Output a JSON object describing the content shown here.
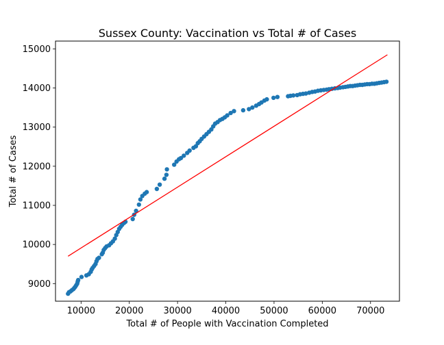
{
  "chart_data": {
    "type": "scatter",
    "title": "Sussex County: Vaccination vs Total # of Cases",
    "xlabel": "Total # of People with Vaccination Completed",
    "ylabel": "Total # of Cases",
    "xlim": [
      4700,
      76000
    ],
    "ylim": [
      8550,
      15200
    ],
    "xticks": [
      10000,
      20000,
      30000,
      40000,
      50000,
      60000,
      70000
    ],
    "yticks": [
      9000,
      10000,
      11000,
      12000,
      13000,
      14000,
      15000
    ],
    "grid": false,
    "point_color": "#1f77b4",
    "series": [
      {
        "points": [
          [
            7300,
            8740
          ],
          [
            7500,
            8780
          ],
          [
            7800,
            8800
          ],
          [
            8100,
            8830
          ],
          [
            8400,
            8860
          ],
          [
            8600,
            8890
          ],
          [
            8800,
            8920
          ],
          [
            9000,
            8960
          ],
          [
            9200,
            9000
          ],
          [
            9300,
            9050
          ],
          [
            9400,
            9090
          ],
          [
            10100,
            9170
          ],
          [
            11100,
            9210
          ],
          [
            11600,
            9240
          ],
          [
            12000,
            9300
          ],
          [
            12200,
            9360
          ],
          [
            12400,
            9400
          ],
          [
            12700,
            9450
          ],
          [
            13000,
            9500
          ],
          [
            13200,
            9570
          ],
          [
            13400,
            9630
          ],
          [
            13700,
            9660
          ],
          [
            14300,
            9750
          ],
          [
            14500,
            9790
          ],
          [
            14700,
            9860
          ],
          [
            15000,
            9910
          ],
          [
            15300,
            9950
          ],
          [
            15800,
            9980
          ],
          [
            16200,
            10030
          ],
          [
            16600,
            10080
          ],
          [
            17000,
            10150
          ],
          [
            17300,
            10240
          ],
          [
            17600,
            10320
          ],
          [
            17900,
            10400
          ],
          [
            18200,
            10450
          ],
          [
            18500,
            10500
          ],
          [
            18900,
            10550
          ],
          [
            19200,
            10580
          ],
          [
            20700,
            10650
          ],
          [
            21000,
            10760
          ],
          [
            21400,
            10860
          ],
          [
            22000,
            11020
          ],
          [
            22300,
            11150
          ],
          [
            22700,
            11240
          ],
          [
            23200,
            11300
          ],
          [
            23600,
            11340
          ],
          [
            25700,
            11420
          ],
          [
            26300,
            11530
          ],
          [
            27300,
            11680
          ],
          [
            27700,
            11780
          ],
          [
            27800,
            11920
          ],
          [
            29300,
            12040
          ],
          [
            29800,
            12120
          ],
          [
            30300,
            12180
          ],
          [
            30700,
            12210
          ],
          [
            31300,
            12270
          ],
          [
            32000,
            12340
          ],
          [
            32500,
            12400
          ],
          [
            33300,
            12470
          ],
          [
            33800,
            12510
          ],
          [
            34200,
            12590
          ],
          [
            34600,
            12640
          ],
          [
            35000,
            12700
          ],
          [
            35500,
            12760
          ],
          [
            36000,
            12820
          ],
          [
            36500,
            12880
          ],
          [
            37000,
            12940
          ],
          [
            37400,
            13020
          ],
          [
            37800,
            13090
          ],
          [
            38300,
            13130
          ],
          [
            38800,
            13180
          ],
          [
            39300,
            13210
          ],
          [
            39800,
            13250
          ],
          [
            40300,
            13300
          ],
          [
            41000,
            13360
          ],
          [
            41700,
            13410
          ],
          [
            43600,
            13430
          ],
          [
            44800,
            13460
          ],
          [
            45500,
            13500
          ],
          [
            46300,
            13550
          ],
          [
            46900,
            13590
          ],
          [
            47400,
            13630
          ],
          [
            48000,
            13680
          ],
          [
            48500,
            13710
          ],
          [
            49900,
            13750
          ],
          [
            50700,
            13770
          ],
          [
            52900,
            13790
          ],
          [
            53400,
            13800
          ],
          [
            54000,
            13810
          ],
          [
            54800,
            13820
          ],
          [
            55400,
            13840
          ],
          [
            56000,
            13850
          ],
          [
            56600,
            13860
          ],
          [
            57300,
            13880
          ],
          [
            57900,
            13900
          ],
          [
            58500,
            13910
          ],
          [
            59100,
            13930
          ],
          [
            59700,
            13940
          ],
          [
            60300,
            13950
          ],
          [
            60900,
            13960
          ],
          [
            61400,
            13970
          ],
          [
            62000,
            13980
          ],
          [
            62600,
            13990
          ],
          [
            63200,
            14000
          ],
          [
            63700,
            14010
          ],
          [
            64300,
            14020
          ],
          [
            64800,
            14030
          ],
          [
            65300,
            14040
          ],
          [
            65800,
            14050
          ],
          [
            66300,
            14050
          ],
          [
            66800,
            14060
          ],
          [
            67300,
            14070
          ],
          [
            67800,
            14080
          ],
          [
            68300,
            14080
          ],
          [
            68800,
            14090
          ],
          [
            69300,
            14100
          ],
          [
            69800,
            14100
          ],
          [
            70300,
            14110
          ],
          [
            70800,
            14110
          ],
          [
            71300,
            14120
          ],
          [
            71800,
            14130
          ],
          [
            72300,
            14140
          ],
          [
            72800,
            14150
          ],
          [
            73300,
            14160
          ]
        ]
      }
    ],
    "trendline": {
      "color": "#ff0000",
      "points": [
        [
          7300,
          9700
        ],
        [
          73500,
          14850
        ]
      ]
    }
  }
}
